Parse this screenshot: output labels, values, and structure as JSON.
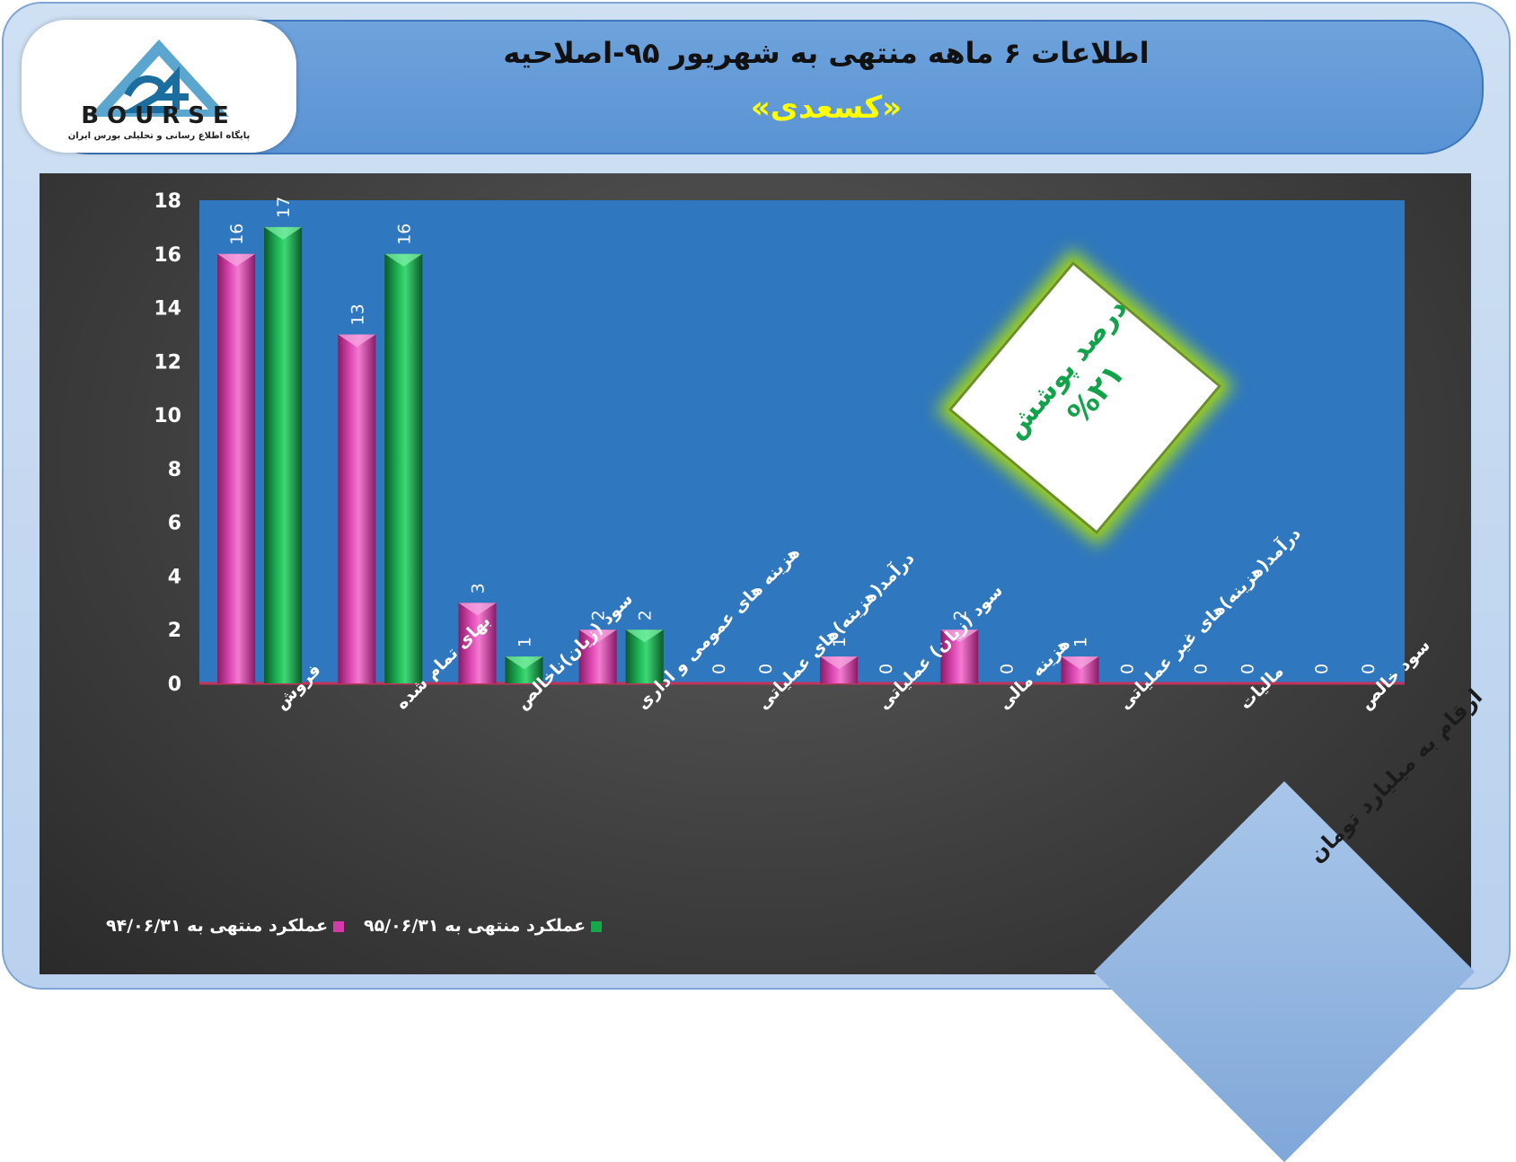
{
  "header": {
    "title": "اطلاعات ۶ ماهه منتهی به شهریور ۹۵-اصلاحیه",
    "subtitle": "«کسعدی»"
  },
  "logo": {
    "word": "BOURSE",
    "tagline": "پایگاه اطلاع رسانی و تحلیلی بورس ایران",
    "numeral": "24"
  },
  "badge": {
    "line1": "درصد پوشش",
    "line2": "%۲۱"
  },
  "unit_note": "ارقام به میلیارد تومان",
  "colors": {
    "series_1995": "#17a84c",
    "series_1994": "#d63aa9",
    "plot_bg": "#2f77be",
    "badge_text": "#12a24a",
    "subtitle": "#ffff00"
  },
  "chart_data": {
    "type": "bar",
    "categories": [
      "فروش",
      "بهای تمام شده",
      "سود (زیان)ناخالص",
      "هزینه های عمومی و اداری",
      "درآمد(هزینه)های عملیاتی",
      "سود (زیان) عملیاتی",
      "هزینه مالی",
      "درآمد(هزینه)های غیر عملیاتی",
      "مالیات",
      "سود خالص"
    ],
    "series": [
      {
        "name": "عملکرد منتهی به ۹۴/۰۶/۳۱",
        "values": [
          16,
          13,
          3,
          2,
          0,
          1,
          2,
          1,
          0,
          0
        ]
      },
      {
        "name": "عملکرد منتهی به ۹۵/۰۶/۳۱",
        "values": [
          17,
          16,
          1,
          2,
          0,
          0,
          0,
          0,
          0,
          0
        ]
      }
    ],
    "yticks": [
      "0",
      "2",
      "4",
      "6",
      "8",
      "10",
      "12",
      "14",
      "16",
      "18"
    ],
    "ylim": [
      0,
      18
    ],
    "grid": false,
    "legend_position": "bottom-left"
  }
}
